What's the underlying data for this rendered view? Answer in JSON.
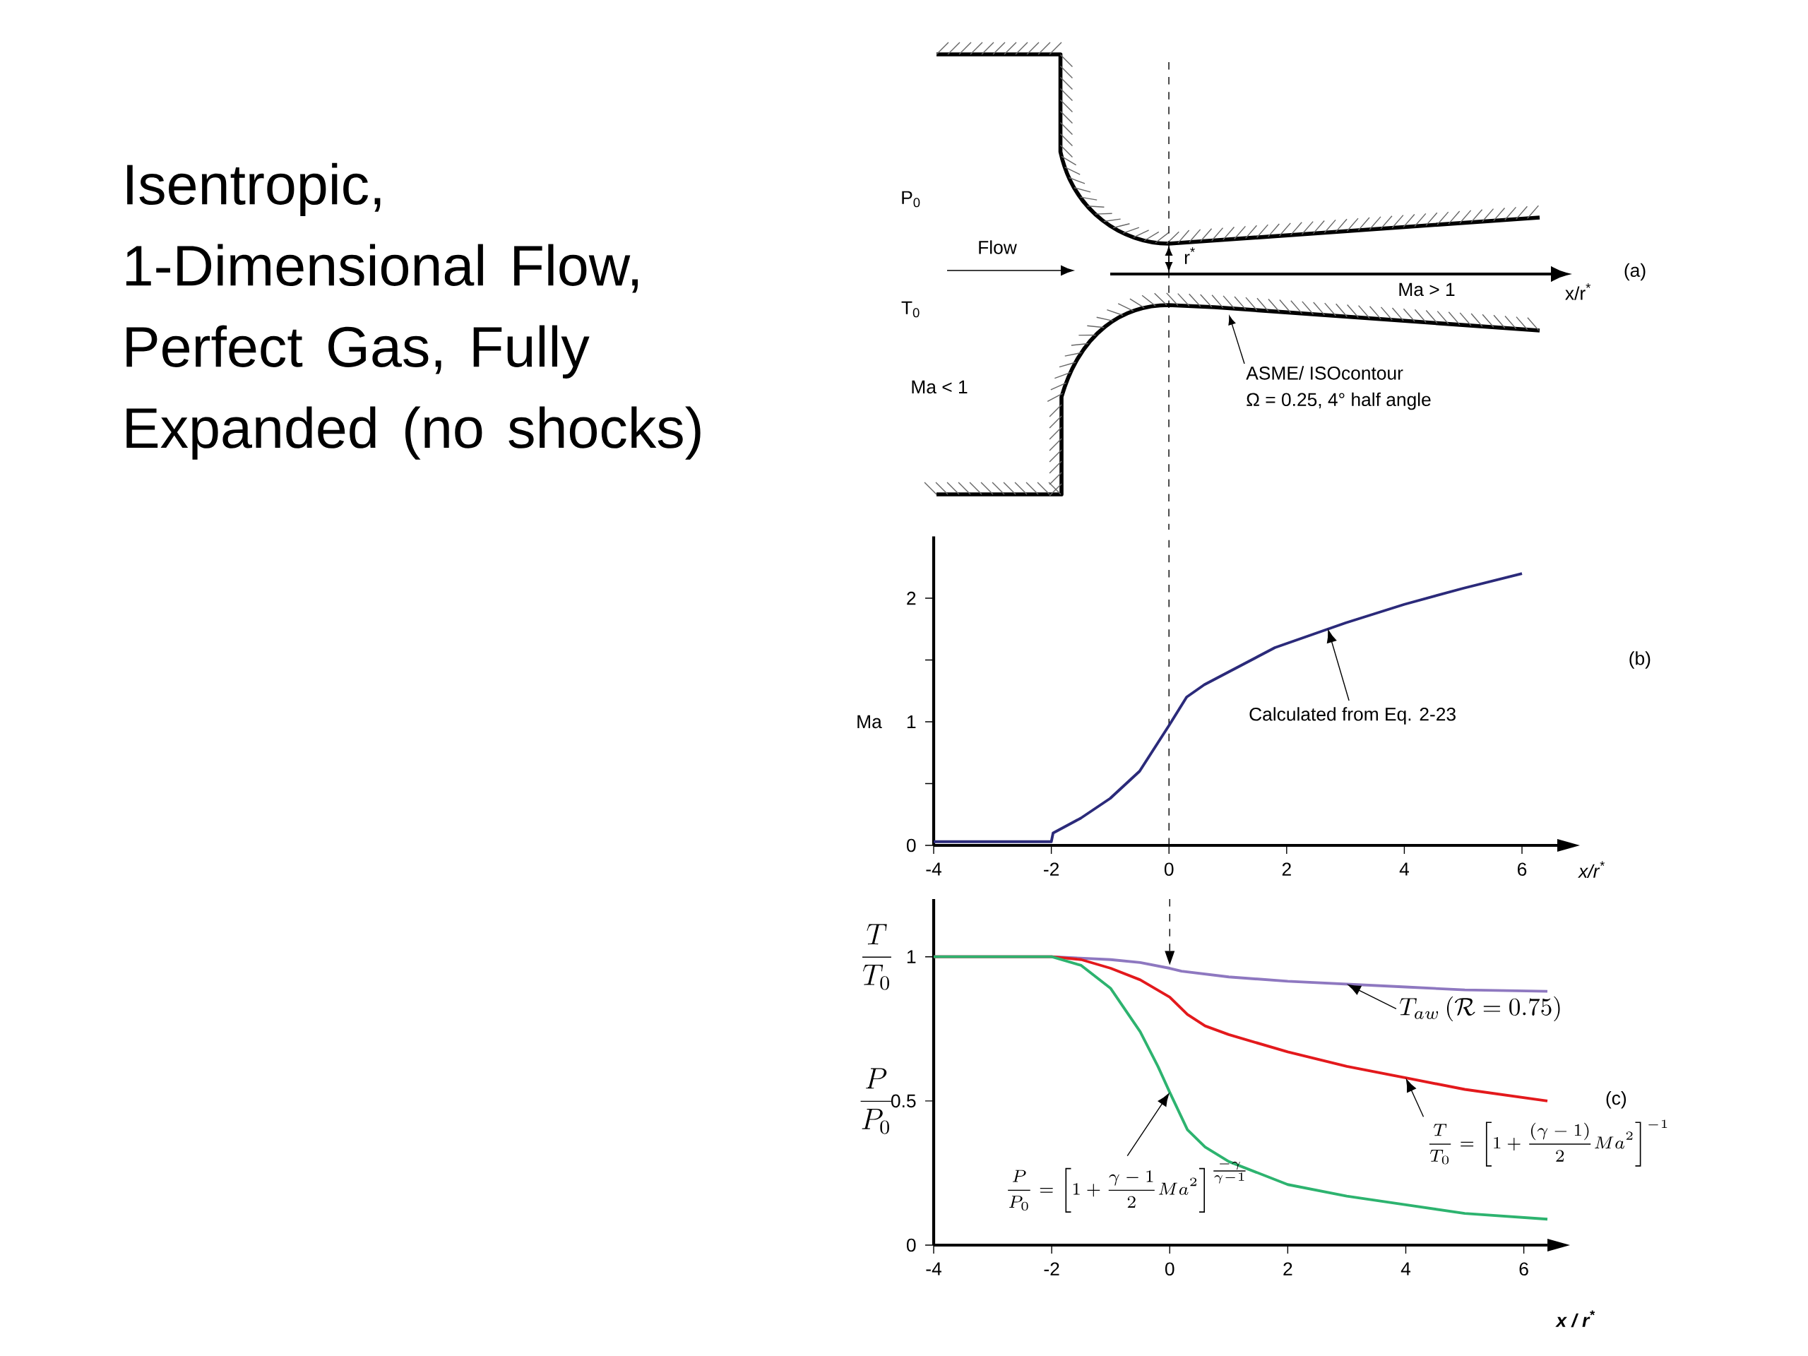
{
  "chart_data": [
    {
      "type": "other",
      "title": "Isentropic, 1-Dimensional Flow, Perfect Gas, Fully Expanded (no shocks)",
      "annotations": [
        "P$_{0}$",
        "Flow",
        "T$_{0}$",
        "Ma < 1",
        "r$^{*}$",
        "Ma > 1",
        "x/r$^{*}$",
        "(a)",
        "ASME/ ISOcontour",
        "Ω = 0.25, 4° half angle"
      ]
    },
    {
      "type": "line",
      "xlabel": "x/r$^{*}$",
      "ylabel": "Ma",
      "x": [
        -4,
        -2,
        -1.97,
        -1.5,
        -1,
        -0.5,
        0,
        0.3,
        0.6,
        1,
        1.8,
        3,
        4,
        5,
        6
      ],
      "series": [
        {
          "color": "#2b2a7a",
          "values": [
            0.03,
            0.03,
            0.1,
            0.22,
            0.38,
            0.6,
            0.97,
            1.2,
            1.3,
            1.4,
            1.6,
            1.8,
            1.95,
            2.08,
            2.2
          ]
        }
      ],
      "xlim": [
        -4,
        6.6
      ],
      "ylim": [
        0,
        2.5
      ],
      "xticks": [
        -4,
        -2,
        0,
        2,
        4,
        6
      ],
      "yticks": [
        0,
        {
          "value": 0.5,
          "label": null
        },
        1,
        {
          "value": 1.5,
          "label": null
        },
        2
      ],
      "ref_lines": [
        {
          "axis": "x",
          "value": 0,
          "line_style": "dashed"
        }
      ],
      "annotations": [
        "Calculated from Eq. 2-23",
        "(b)"
      ],
      "grid": false,
      "marker": "none",
      "line_style": "solid"
    },
    {
      "type": "line",
      "xlabel": "x / r$^{*}$",
      "series": [
        {
          "name": "T_{aw}\\,(\\mathcal{R}=0.75)",
          "color": "#8e78c0",
          "x": [
            -4,
            -2,
            -1,
            -0.5,
            0,
            0.2,
            1,
            2,
            3,
            4,
            5,
            6.4
          ],
          "values": [
            1,
            1,
            0.99,
            0.98,
            0.96,
            0.95,
            0.93,
            0.915,
            0.905,
            0.895,
            0.885,
            0.88
          ]
        },
        {
          "name": "\\frac{T}{T_0}=\\left[1+\\frac{(\\gamma-1)}{2}Ma^2\\right]^{-1}",
          "color": "#e3191c",
          "x": [
            -4,
            -2,
            -1.5,
            -1,
            -0.5,
            0,
            0.3,
            0.6,
            1,
            2,
            3,
            4,
            5,
            6.4
          ],
          "values": [
            1,
            1,
            0.99,
            0.96,
            0.92,
            0.86,
            0.8,
            0.76,
            0.73,
            0.67,
            0.62,
            0.58,
            0.54,
            0.5
          ]
        },
        {
          "name": "\\frac{P}{P_0}=\\left[1+\\frac{\\gamma-1}{2}Ma^2\\right]^{\\frac{-\\gamma}{\\gamma-1}}",
          "color": "#2db36f",
          "x": [
            -4,
            -2,
            -1.5,
            -1,
            -0.5,
            -0.2,
            0,
            0.3,
            0.6,
            1,
            2,
            3,
            4,
            5,
            6.4
          ],
          "values": [
            1,
            1,
            0.97,
            0.89,
            0.74,
            0.62,
            0.53,
            0.4,
            0.34,
            0.29,
            0.21,
            0.17,
            0.14,
            0.11,
            0.09
          ]
        }
      ],
      "xlim": [
        -4,
        6.4
      ],
      "ylim": [
        0,
        1.2
      ],
      "xticks": [
        -4,
        -2,
        0,
        2,
        4,
        6
      ],
      "yticks": [
        0,
        0.5,
        1
      ],
      "ref_lines": [
        {
          "axis": "x",
          "value": 0,
          "line_style": "dashed"
        }
      ],
      "annotations": [
        "\\frac{T}{T_0}",
        "\\frac{P}{P_0}",
        "(c)"
      ],
      "grid": false,
      "marker": "none",
      "line_style": "solid"
    }
  ]
}
